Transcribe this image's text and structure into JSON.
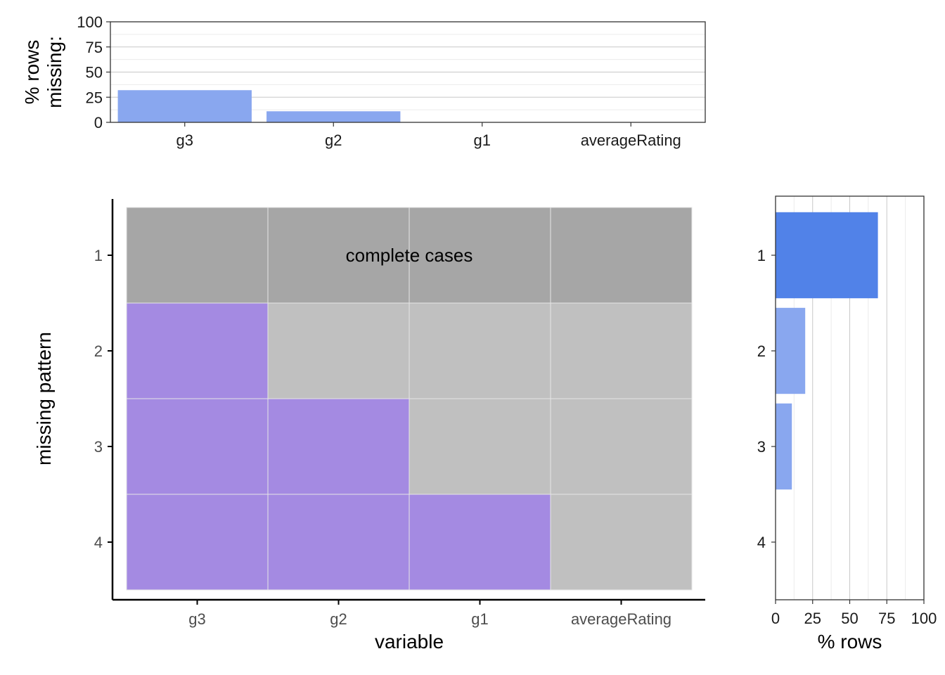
{
  "colors": {
    "bar_top": "#89a7ef",
    "bar_right_highlight": "#5182e8",
    "bar_right": "#89a7ef",
    "missing": "#a48ae2",
    "present": "#c0c0c0",
    "complete": "#a6a6a6"
  },
  "chart_data": [
    {
      "type": "bar",
      "name": "top-missing-by-variable",
      "categories": [
        "g3",
        "g2",
        "g1",
        "averageRating"
      ],
      "values": [
        32,
        11,
        0,
        0
      ],
      "ylabel_lines": [
        "% rows",
        "missing:"
      ],
      "ylim": [
        0,
        100
      ],
      "yticks": [
        0,
        25,
        50,
        75,
        100
      ],
      "grid": true
    },
    {
      "type": "heatmap",
      "name": "missing-pattern-grid",
      "xcategories": [
        "g3",
        "g2",
        "g1",
        "averageRating"
      ],
      "ycategories": [
        "1",
        "2",
        "3",
        "4"
      ],
      "xlabel": "variable",
      "ylabel": "missing pattern",
      "patterns": [
        [
          false,
          false,
          false,
          false
        ],
        [
          true,
          false,
          false,
          false
        ],
        [
          true,
          true,
          false,
          false
        ],
        [
          true,
          true,
          true,
          false
        ]
      ],
      "annotation": {
        "row": 0,
        "text": "complete cases"
      }
    },
    {
      "type": "bar",
      "name": "right-rows-by-pattern",
      "orientation": "horizontal",
      "categories": [
        "1",
        "2",
        "3",
        "4"
      ],
      "values": [
        69,
        20,
        11,
        0
      ],
      "highlight_index": 0,
      "xlabel": "% rows",
      "xlim": [
        0,
        100
      ],
      "xticks": [
        0,
        25,
        50,
        75,
        100
      ],
      "grid": true
    }
  ]
}
